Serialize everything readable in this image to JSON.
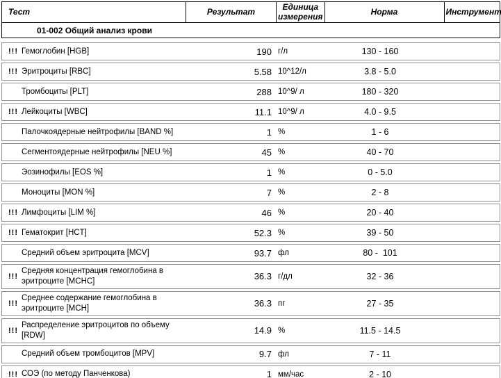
{
  "table": {
    "columns": {
      "test": "Тест",
      "result": "Результат",
      "unit": "Единица измерения",
      "norm": "Норма",
      "instrument": "Инструмент"
    },
    "section_title": "01-002 Общий анализ крови",
    "abnormal_marker": "!!!",
    "rows": [
      {
        "flag": "!!!",
        "test": "Гемоглобин [HGB]",
        "result": "190",
        "unit": "г/л",
        "norm": "130 - 160"
      },
      {
        "flag": "!!!",
        "test": "Эритроциты [RBC]",
        "result": "5.58",
        "unit": "10^12/л",
        "norm": "3.8 - 5.0"
      },
      {
        "flag": "",
        "test": "Тромбоциты [PLT]",
        "result": "288",
        "unit": "10^9/ л",
        "norm": "180 - 320"
      },
      {
        "flag": "!!!",
        "test": "Лейкоциты [WBC]",
        "result": "11.1",
        "unit": "10^9/ л",
        "norm": "4.0 - 9.5"
      },
      {
        "flag": "",
        "test": "Палочкоядерные нейтрофилы [BAND %]",
        "result": "1",
        "unit": "%",
        "norm": "1 - 6"
      },
      {
        "flag": "",
        "test": "Сегментоядерные нейтрофилы [NEU %]",
        "result": "45",
        "unit": "%",
        "norm": "40 - 70"
      },
      {
        "flag": "",
        "test": "Эозинофилы [EOS %]",
        "result": "1",
        "unit": "%",
        "norm": "0 - 5.0"
      },
      {
        "flag": "",
        "test": "Моноциты [MON %]",
        "result": "7",
        "unit": "%",
        "norm": "2 - 8"
      },
      {
        "flag": "!!!",
        "test": "Лимфоциты [LIM %]",
        "result": "46",
        "unit": "%",
        "norm": "20 - 40"
      },
      {
        "flag": "!!!",
        "test": "Гематокрит [HCT]",
        "result": "52.3",
        "unit": "%",
        "norm": "39 - 50"
      },
      {
        "flag": "",
        "test": "Средний объем эритроцита [MCV]",
        "result": "93.7",
        "unit": "фл",
        "norm": "80 -  101"
      },
      {
        "flag": "!!!",
        "test": "Средняя концентрация гемоглобина в эритроците [MCHC]",
        "result": "36.3",
        "unit": "г/дл",
        "norm": "32 - 36"
      },
      {
        "flag": "!!!",
        "test": "Среднее содержание гемоглобина  в эритроците [MCH]",
        "result": "36.3",
        "unit": "пг",
        "norm": "27 - 35"
      },
      {
        "flag": "!!!",
        "test": "Распределение эритроцитов по объему [RDW]",
        "result": "14.9",
        "unit": "%",
        "norm": "11.5 - 14.5"
      },
      {
        "flag": "",
        "test": "Средний объем тромбоцитов [MPV]",
        "result": "9.7",
        "unit": "фл",
        "norm": "7 - 11"
      },
      {
        "flag": "!!!",
        "test": "СОЭ (по методу Панченкова)",
        "result": "1",
        "unit": "мм/час",
        "norm": "2 - 10"
      }
    ]
  }
}
